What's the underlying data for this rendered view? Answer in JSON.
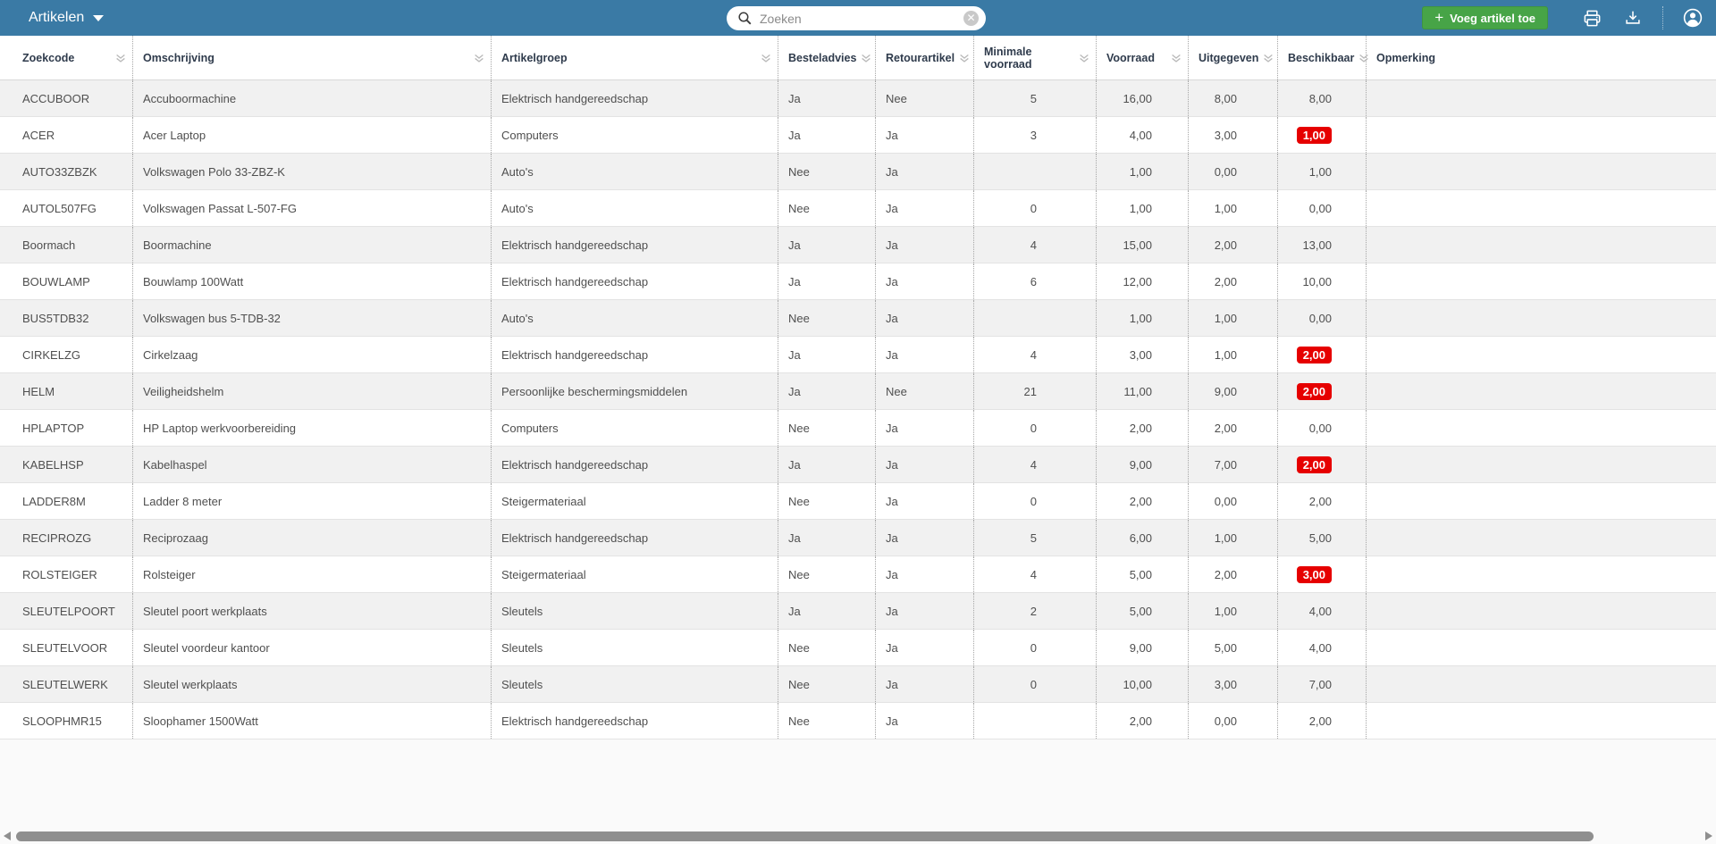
{
  "colors": {
    "topbar_blue": "#3a7aa5",
    "accent_green": "#47a447",
    "badge_red": "#e60000",
    "row_stripe": "#f1f1f1"
  },
  "topbar": {
    "nav_label": "Artikelen",
    "nav_caret_icon": "triangle-down-icon",
    "search": {
      "placeholder": "Zoeken",
      "value": "",
      "search_icon": "magnifier-icon",
      "clear_icon": "circle-x-icon",
      "clear_glyph": "✕"
    },
    "add_button": {
      "label": "Voeg artikel toe",
      "plus_glyph": "+",
      "icon": "plus-icon"
    },
    "print_icon": "printer-icon",
    "download_icon": "download-tray-icon",
    "account_icon": "person-circle-icon"
  },
  "table": {
    "sort_icon": "double-chevron-down-icon",
    "columns": [
      {
        "key": "zoekcode",
        "label": "Zoekcode",
        "sortable": true,
        "numClass": ""
      },
      {
        "key": "omschrijving",
        "label": "Omschrijving",
        "sortable": true,
        "numClass": ""
      },
      {
        "key": "artikelgroep",
        "label": "Artikelgroep",
        "sortable": true,
        "numClass": ""
      },
      {
        "key": "besteladvies",
        "label": "Besteladvies",
        "sortable": true,
        "numClass": ""
      },
      {
        "key": "retourartikel",
        "label": "Retourartikel",
        "sortable": true,
        "numClass": ""
      },
      {
        "key": "minimale_voorraad",
        "label": "Minimale voorraad",
        "sortable": true,
        "numClass": "pr-min"
      },
      {
        "key": "voorraad",
        "label": "Voorraad",
        "sortable": true,
        "numClass": "pr-voor"
      },
      {
        "key": "uitgegeven",
        "label": "Uitgegeven",
        "sortable": true,
        "numClass": "pr-uit"
      },
      {
        "key": "beschikbaar",
        "label": "Beschikbaar",
        "sortable": true,
        "numClass": "pr-besch"
      },
      {
        "key": "opmerking",
        "label": "Opmerking",
        "sortable": false,
        "numClass": ""
      }
    ],
    "rows": [
      {
        "zoekcode": "ACCUBOOR",
        "omschrijving": "Accuboormachine",
        "artikelgroep": "Elektrisch handgereedschap",
        "besteladvies": "Ja",
        "retourartikel": "Nee",
        "minimale_voorraad": "5",
        "voorraad": "16,00",
        "uitgegeven": "8,00",
        "beschikbaar": "8,00",
        "beschikbaar_low": false,
        "opmerking": ""
      },
      {
        "zoekcode": "ACER",
        "omschrijving": "Acer Laptop",
        "artikelgroep": "Computers",
        "besteladvies": "Ja",
        "retourartikel": "Ja",
        "minimale_voorraad": "3",
        "voorraad": "4,00",
        "uitgegeven": "3,00",
        "beschikbaar": "1,00",
        "beschikbaar_low": true,
        "opmerking": ""
      },
      {
        "zoekcode": "AUTO33ZBZK",
        "omschrijving": "Volkswagen Polo 33-ZBZ-K",
        "artikelgroep": "Auto's",
        "besteladvies": "Nee",
        "retourartikel": "Ja",
        "minimale_voorraad": "",
        "voorraad": "1,00",
        "uitgegeven": "0,00",
        "beschikbaar": "1,00",
        "beschikbaar_low": false,
        "opmerking": ""
      },
      {
        "zoekcode": "AUTOL507FG",
        "omschrijving": "Volkswagen Passat L-507-FG",
        "artikelgroep": "Auto's",
        "besteladvies": "Nee",
        "retourartikel": "Ja",
        "minimale_voorraad": "0",
        "voorraad": "1,00",
        "uitgegeven": "1,00",
        "beschikbaar": "0,00",
        "beschikbaar_low": false,
        "opmerking": ""
      },
      {
        "zoekcode": "Boormach",
        "omschrijving": "Boormachine",
        "artikelgroep": "Elektrisch handgereedschap",
        "besteladvies": "Ja",
        "retourartikel": "Ja",
        "minimale_voorraad": "4",
        "voorraad": "15,00",
        "uitgegeven": "2,00",
        "beschikbaar": "13,00",
        "beschikbaar_low": false,
        "opmerking": ""
      },
      {
        "zoekcode": "BOUWLAMP",
        "omschrijving": "Bouwlamp 100Watt",
        "artikelgroep": "Elektrisch handgereedschap",
        "besteladvies": "Ja",
        "retourartikel": "Ja",
        "minimale_voorraad": "6",
        "voorraad": "12,00",
        "uitgegeven": "2,00",
        "beschikbaar": "10,00",
        "beschikbaar_low": false,
        "opmerking": ""
      },
      {
        "zoekcode": "BUS5TDB32",
        "omschrijving": "Volkswagen bus 5-TDB-32",
        "artikelgroep": "Auto's",
        "besteladvies": "Nee",
        "retourartikel": "Ja",
        "minimale_voorraad": "",
        "voorraad": "1,00",
        "uitgegeven": "1,00",
        "beschikbaar": "0,00",
        "beschikbaar_low": false,
        "opmerking": ""
      },
      {
        "zoekcode": "CIRKELZG",
        "omschrijving": "Cirkelzaag",
        "artikelgroep": "Elektrisch handgereedschap",
        "besteladvies": "Ja",
        "retourartikel": "Ja",
        "minimale_voorraad": "4",
        "voorraad": "3,00",
        "uitgegeven": "1,00",
        "beschikbaar": "2,00",
        "beschikbaar_low": true,
        "opmerking": ""
      },
      {
        "zoekcode": "HELM",
        "omschrijving": "Veiligheidshelm",
        "artikelgroep": "Persoonlijke beschermingsmiddelen",
        "besteladvies": "Ja",
        "retourartikel": "Nee",
        "minimale_voorraad": "21",
        "voorraad": "11,00",
        "uitgegeven": "9,00",
        "beschikbaar": "2,00",
        "beschikbaar_low": true,
        "opmerking": ""
      },
      {
        "zoekcode": "HPLAPTOP",
        "omschrijving": "HP Laptop werkvoorbereiding",
        "artikelgroep": "Computers",
        "besteladvies": "Nee",
        "retourartikel": "Ja",
        "minimale_voorraad": "0",
        "voorraad": "2,00",
        "uitgegeven": "2,00",
        "beschikbaar": "0,00",
        "beschikbaar_low": false,
        "opmerking": ""
      },
      {
        "zoekcode": "KABELHSP",
        "omschrijving": "Kabelhaspel",
        "artikelgroep": "Elektrisch handgereedschap",
        "besteladvies": "Ja",
        "retourartikel": "Ja",
        "minimale_voorraad": "4",
        "voorraad": "9,00",
        "uitgegeven": "7,00",
        "beschikbaar": "2,00",
        "beschikbaar_low": true,
        "opmerking": ""
      },
      {
        "zoekcode": "LADDER8M",
        "omschrijving": "Ladder 8 meter",
        "artikelgroep": "Steigermateriaal",
        "besteladvies": "Nee",
        "retourartikel": "Ja",
        "minimale_voorraad": "0",
        "voorraad": "2,00",
        "uitgegeven": "0,00",
        "beschikbaar": "2,00",
        "beschikbaar_low": false,
        "opmerking": ""
      },
      {
        "zoekcode": "RECIPROZG",
        "omschrijving": "Reciprozaag",
        "artikelgroep": "Elektrisch handgereedschap",
        "besteladvies": "Ja",
        "retourartikel": "Ja",
        "minimale_voorraad": "5",
        "voorraad": "6,00",
        "uitgegeven": "1,00",
        "beschikbaar": "5,00",
        "beschikbaar_low": false,
        "opmerking": ""
      },
      {
        "zoekcode": "ROLSTEIGER",
        "omschrijving": "Rolsteiger",
        "artikelgroep": "Steigermateriaal",
        "besteladvies": "Nee",
        "retourartikel": "Ja",
        "minimale_voorraad": "4",
        "voorraad": "5,00",
        "uitgegeven": "2,00",
        "beschikbaar": "3,00",
        "beschikbaar_low": true,
        "opmerking": ""
      },
      {
        "zoekcode": "SLEUTELPOORT",
        "omschrijving": "Sleutel poort werkplaats",
        "artikelgroep": "Sleutels",
        "besteladvies": "Ja",
        "retourartikel": "Ja",
        "minimale_voorraad": "2",
        "voorraad": "5,00",
        "uitgegeven": "1,00",
        "beschikbaar": "4,00",
        "beschikbaar_low": false,
        "opmerking": ""
      },
      {
        "zoekcode": "SLEUTELVOOR",
        "omschrijving": "Sleutel voordeur kantoor",
        "artikelgroep": "Sleutels",
        "besteladvies": "Nee",
        "retourartikel": "Ja",
        "minimale_voorraad": "0",
        "voorraad": "9,00",
        "uitgegeven": "5,00",
        "beschikbaar": "4,00",
        "beschikbaar_low": false,
        "opmerking": ""
      },
      {
        "zoekcode": "SLEUTELWERK",
        "omschrijving": "Sleutel werkplaats",
        "artikelgroep": "Sleutels",
        "besteladvies": "Nee",
        "retourartikel": "Ja",
        "minimale_voorraad": "0",
        "voorraad": "10,00",
        "uitgegeven": "3,00",
        "beschikbaar": "7,00",
        "beschikbaar_low": false,
        "opmerking": ""
      },
      {
        "zoekcode": "SLOOPHMR15",
        "omschrijving": "Sloophamer 1500Watt",
        "artikelgroep": "Elektrisch handgereedschap",
        "besteladvies": "Nee",
        "retourartikel": "Ja",
        "minimale_voorraad": "",
        "voorraad": "2,00",
        "uitgegeven": "0,00",
        "beschikbaar": "2,00",
        "beschikbaar_low": false,
        "opmerking": ""
      }
    ]
  }
}
